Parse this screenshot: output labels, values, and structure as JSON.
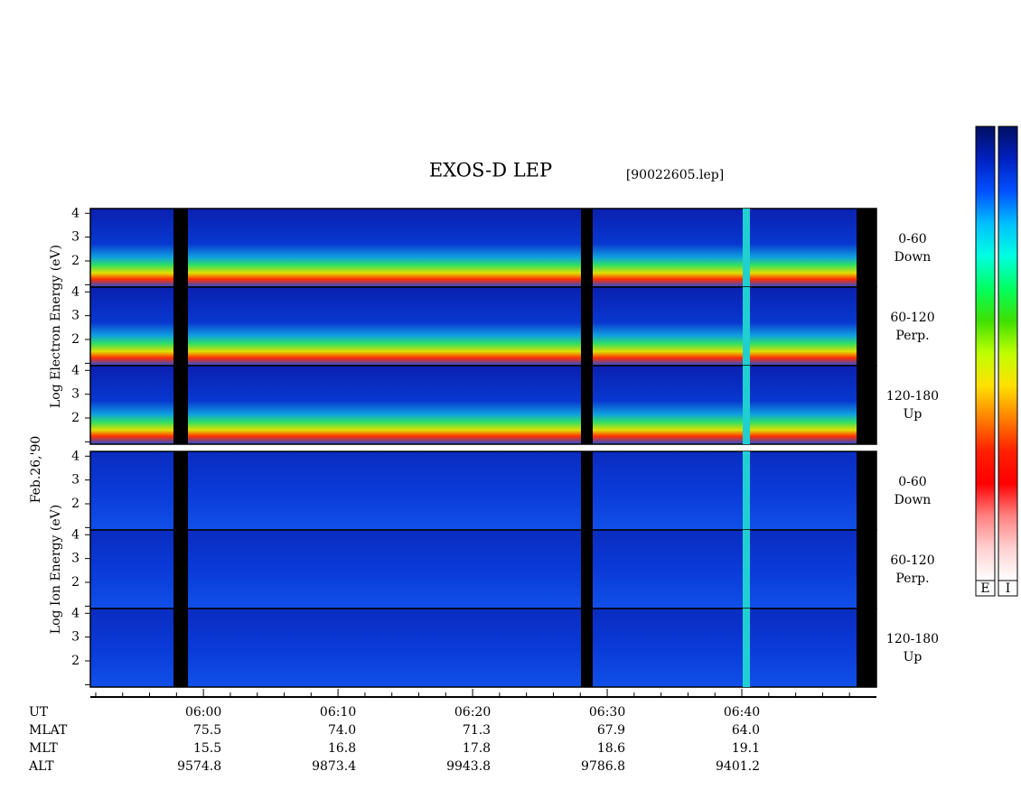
{
  "chart_data": {
    "type": "spectrogram",
    "title": "EXOS-D LEP",
    "filename": "[90022605.lep]",
    "date_label": "Feb.26,'90",
    "xlim": [
      351.6,
      410
    ],
    "xticks": [
      {
        "value": 360,
        "label": "06:00"
      },
      {
        "value": 370,
        "label": "06:10"
      },
      {
        "value": 380,
        "label": "06:20"
      },
      {
        "value": 390,
        "label": "06:30"
      },
      {
        "value": 400,
        "label": "06:40"
      }
    ],
    "xminor_ticks": [
      352,
      354,
      356,
      358,
      362,
      364,
      366,
      368,
      372,
      374,
      376,
      378,
      382,
      384,
      386,
      388,
      392,
      394,
      396,
      398,
      402,
      404,
      406,
      408
    ],
    "ylim": [
      0.9,
      4.2
    ],
    "yticks": [
      2,
      3,
      4
    ],
    "yminor_ticks": [
      1
    ],
    "groups": [
      {
        "axis_label": "Log  Electron  Energy (eV)",
        "panels": [
          {
            "pitch_angle": "0-60",
            "direction": "Down"
          },
          {
            "pitch_angle": "60-120",
            "direction": "Perp."
          },
          {
            "pitch_angle": "120-180",
            "direction": "Up"
          }
        ]
      },
      {
        "axis_label": "Log  Ion  Energy (eV)",
        "panels": [
          {
            "pitch_angle": "0-60",
            "direction": "Down"
          },
          {
            "pitch_angle": "60-120",
            "direction": "Perp."
          },
          {
            "pitch_angle": "120-180",
            "direction": "Up"
          }
        ]
      }
    ],
    "time_row_label": "UT",
    "ephemeris": [
      {
        "label": "MLAT",
        "values": [
          "75.5",
          "74.0",
          "71.3",
          "67.9",
          "64.0"
        ]
      },
      {
        "label": "MLT",
        "values": [
          "15.5",
          "16.8",
          "17.8",
          "18.6",
          "19.1"
        ]
      },
      {
        "label": "ALT",
        "values": [
          "9574.8",
          "9873.4",
          "9943.8",
          "9786.8",
          "9401.2"
        ]
      }
    ],
    "colorbars": [
      {
        "label": "E"
      },
      {
        "label": "I"
      }
    ],
    "colorscale": [
      "#001060",
      "#0020c0",
      "#0050ff",
      "#00c0ff",
      "#00ffe0",
      "#00ff60",
      "#40e000",
      "#c0ff00",
      "#ffe000",
      "#ff8000",
      "#ff2000",
      "#ff0000",
      "#ff8080",
      "#ffd0d0",
      "#ffffff"
    ]
  }
}
